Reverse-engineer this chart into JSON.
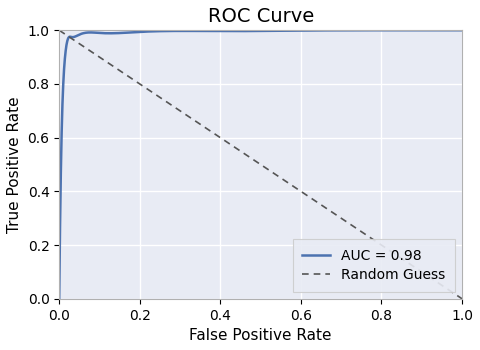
{
  "title": "ROC Curve",
  "xlabel": "False Positive Rate",
  "ylabel": "True Positive Rate",
  "auc_label": "AUC = 0.98",
  "random_label": "Random Guess",
  "roc_color": "#4C72B0",
  "random_color": "#555555",
  "background_color": "#E8EBF4",
  "fig_facecolor": "#ffffff",
  "xlim": [
    0.0,
    1.0
  ],
  "ylim": [
    0.0,
    1.0
  ],
  "xticks": [
    0.0,
    0.2,
    0.4,
    0.6,
    0.8,
    1.0
  ],
  "yticks": [
    0.0,
    0.2,
    0.4,
    0.6,
    0.8,
    1.0
  ],
  "title_fontsize": 14,
  "label_fontsize": 11,
  "tick_fontsize": 10,
  "legend_fontsize": 10,
  "roc_fpr": [
    0.0,
    0.005,
    0.01,
    0.015,
    0.02,
    0.03,
    0.05,
    0.1,
    0.2,
    0.4,
    0.6,
    0.8,
    1.0
  ],
  "roc_tpr": [
    0.0,
    0.55,
    0.8,
    0.91,
    0.96,
    0.975,
    0.984,
    0.99,
    0.994,
    0.997,
    0.999,
    1.0,
    1.0
  ]
}
